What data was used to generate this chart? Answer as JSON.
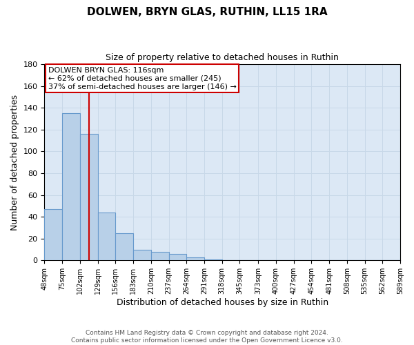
{
  "title1": "DOLWEN, BRYN GLAS, RUTHIN, LL15 1RA",
  "title2": "Size of property relative to detached houses in Ruthin",
  "xlabel": "Distribution of detached houses by size in Ruthin",
  "ylabel": "Number of detached properties",
  "bin_edges": [
    48,
    75,
    102,
    129,
    156,
    183,
    210,
    237,
    264,
    291,
    318,
    345,
    373,
    400,
    427,
    454,
    481,
    508,
    535,
    562,
    589
  ],
  "bar_heights": [
    47,
    135,
    116,
    44,
    25,
    10,
    8,
    6,
    3,
    1,
    0,
    0,
    0,
    0,
    0,
    0,
    0,
    0,
    0,
    0
  ],
  "bar_color": "#b8d0e8",
  "bar_edge_color": "#6699cc",
  "property_size": 116,
  "red_line_color": "#cc0000",
  "annotation_line1": "DOLWEN BRYN GLAS: 116sqm",
  "annotation_line2": "← 62% of detached houses are smaller (245)",
  "annotation_line3": "37% of semi-detached houses are larger (146) →",
  "annotation_box_color": "#cc0000",
  "ylim": [
    0,
    180
  ],
  "grid_color": "#c8d8e8",
  "background_color": "#dce8f5",
  "footer_text": "Contains HM Land Registry data © Crown copyright and database right 2024.\nContains public sector information licensed under the Open Government Licence v3.0.",
  "tick_labels": [
    "48sqm",
    "75sqm",
    "102sqm",
    "129sqm",
    "156sqm",
    "183sqm",
    "210sqm",
    "237sqm",
    "264sqm",
    "291sqm",
    "318sqm",
    "345sqm",
    "373sqm",
    "400sqm",
    "427sqm",
    "454sqm",
    "481sqm",
    "508sqm",
    "535sqm",
    "562sqm",
    "589sqm"
  ],
  "yticks": [
    0,
    20,
    40,
    60,
    80,
    100,
    120,
    140,
    160,
    180
  ]
}
